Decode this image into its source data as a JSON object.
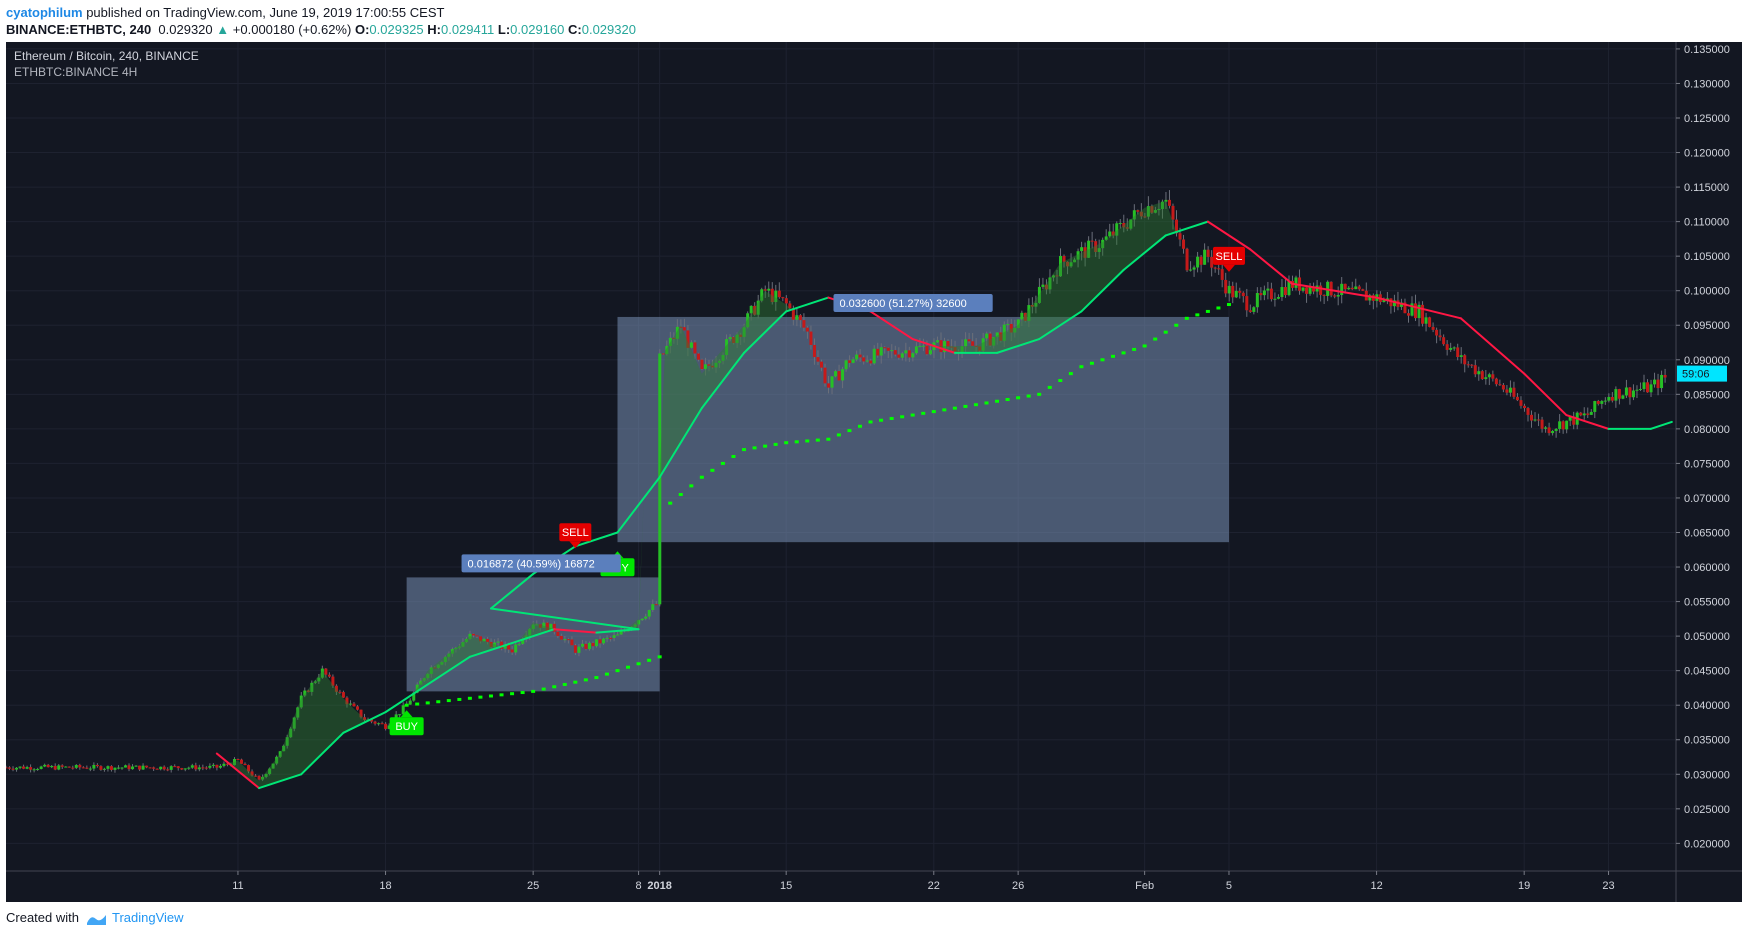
{
  "header": {
    "author": "cyatophilum",
    "published_text": "published on TradingView.com, June 19, 2019 17:00:55 CEST",
    "symbol": "BINANCE:ETHBTC, 240",
    "last_price": "0.029320",
    "change": "+0.000180 (+0.62%)",
    "open_label": "O:",
    "open": "0.029325",
    "high_label": "H:",
    "high": "0.029411",
    "low_label": "L:",
    "low": "0.029160",
    "close_label": "C:",
    "close": "0.029320"
  },
  "chart": {
    "title": "Ethereum / Bitcoin, 240, BINANCE",
    "indicator": "ETHBTC:BINANCE 4H",
    "countdown": "59:06"
  },
  "colors": {
    "background": "#131722",
    "bull_candle": "#26c026",
    "bear_candle": "#c41a1a",
    "ma_up": "#00e676",
    "ma_down": "#ff1744",
    "stop_dots": "#00ff00",
    "range_box": "#788fb4",
    "buy_label": "#00e600",
    "sell_label": "#e50000",
    "countdown_bg": "#00e5ff"
  },
  "chart_data": {
    "type": "candlestick",
    "title": "Ethereum / Bitcoin, 240, BINANCE",
    "x_tick_labels": [
      "11",
      "18",
      "25",
      "2018",
      "8",
      "15",
      "22",
      "26",
      "Feb",
      "5",
      "12",
      "19",
      "23"
    ],
    "y_tick_labels": [
      "0.135000",
      "0.130000",
      "0.125000",
      "0.120000",
      "0.115000",
      "0.110000",
      "0.105000",
      "0.100000",
      "0.095000",
      "0.090000",
      "0.085000",
      "0.080000",
      "0.075000",
      "0.070000",
      "0.065000",
      "0.060000",
      "0.055000",
      "0.050000",
      "0.045000",
      "0.040000",
      "0.035000",
      "0.030000",
      "0.025000",
      "0.020000"
    ],
    "ylim": [
      0.016,
      0.136
    ],
    "price_path": [
      {
        "x": "Dec 10",
        "y": 0.031
      },
      {
        "x": "Dec 11",
        "y": 0.032
      },
      {
        "x": "Dec 12",
        "y": 0.029
      },
      {
        "x": "Dec 13",
        "y": 0.033
      },
      {
        "x": "Dec 14",
        "y": 0.041
      },
      {
        "x": "Dec 15",
        "y": 0.045
      },
      {
        "x": "Dec 16",
        "y": 0.041
      },
      {
        "x": "Dec 17",
        "y": 0.038
      },
      {
        "x": "Dec 18",
        "y": 0.037
      },
      {
        "x": "Dec 19",
        "y": 0.04
      },
      {
        "x": "Dec 20",
        "y": 0.045
      },
      {
        "x": "Dec 22",
        "y": 0.05
      },
      {
        "x": "Dec 24",
        "y": 0.048
      },
      {
        "x": "Dec 25",
        "y": 0.052
      },
      {
        "x": "Dec 26",
        "y": 0.051
      },
      {
        "x": "Dec 27",
        "y": 0.048
      },
      {
        "x": "Dec 29",
        "y": 0.05
      },
      {
        "x": "Dec 31",
        "y": 0.055
      },
      {
        "x": "Jan 1",
        "y": 0.054
      },
      {
        "x": "Jan 2",
        "y": 0.061
      },
      {
        "x": "Jan 3",
        "y": 0.058
      },
      {
        "x": "Jan 4",
        "y": 0.065
      },
      {
        "x": "Jan 5",
        "y": 0.062
      },
      {
        "x": "Jan 6",
        "y": 0.058
      },
      {
        "x": "Jan 7",
        "y": 0.062
      },
      {
        "x": "Jan 8",
        "y": 0.076
      },
      {
        "x": "Jan 9",
        "y": 0.09
      },
      {
        "x": "Jan 10",
        "y": 0.095
      },
      {
        "x": "Jan 11",
        "y": 0.088
      },
      {
        "x": "Jan 13",
        "y": 0.095
      },
      {
        "x": "Jan 14",
        "y": 0.1
      },
      {
        "x": "Jan 15",
        "y": 0.098
      },
      {
        "x": "Jan 16",
        "y": 0.094
      },
      {
        "x": "Jan 17",
        "y": 0.086
      },
      {
        "x": "Jan 18",
        "y": 0.09
      },
      {
        "x": "Jan 20",
        "y": 0.091
      },
      {
        "x": "Jan 22",
        "y": 0.092
      },
      {
        "x": "Jan 24",
        "y": 0.092
      },
      {
        "x": "Jan 26",
        "y": 0.095
      },
      {
        "x": "Jan 28",
        "y": 0.104
      },
      {
        "x": "Jan 30",
        "y": 0.107
      },
      {
        "x": "Feb 1",
        "y": 0.112
      },
      {
        "x": "Feb 2",
        "y": 0.113
      },
      {
        "x": "Feb 3",
        "y": 0.104
      },
      {
        "x": "Feb 4",
        "y": 0.105
      },
      {
        "x": "Feb 5",
        "y": 0.1
      },
      {
        "x": "Feb 6",
        "y": 0.098
      },
      {
        "x": "Feb 8",
        "y": 0.101
      },
      {
        "x": "Feb 10",
        "y": 0.1
      },
      {
        "x": "Feb 12",
        "y": 0.099
      },
      {
        "x": "Feb 14",
        "y": 0.097
      },
      {
        "x": "Feb 16",
        "y": 0.09
      },
      {
        "x": "Feb 18",
        "y": 0.086
      },
      {
        "x": "Feb 20",
        "y": 0.08
      },
      {
        "x": "Feb 22",
        "y": 0.082
      },
      {
        "x": "Feb 23",
        "y": 0.085
      },
      {
        "x": "Feb 25",
        "y": 0.086
      },
      {
        "x": "Feb 26",
        "y": 0.088
      }
    ],
    "moving_average": [
      {
        "x": "Dec 10",
        "y": 0.033
      },
      {
        "x": "Dec 12",
        "y": 0.028
      },
      {
        "x": "Dec 14",
        "y": 0.03
      },
      {
        "x": "Dec 16",
        "y": 0.036
      },
      {
        "x": "Dec 18",
        "y": 0.039
      },
      {
        "x": "Dec 20",
        "y": 0.043
      },
      {
        "x": "Dec 22",
        "y": 0.047
      },
      {
        "x": "Dec 24",
        "y": 0.049
      },
      {
        "x": "Dec 26",
        "y": 0.051
      },
      {
        "x": "Dec 28",
        "y": 0.0505
      },
      {
        "x": "Dec 30",
        "y": 0.051
      },
      {
        "x": "Jan 1",
        "y": 0.054
      },
      {
        "x": "Jan 3",
        "y": 0.059
      },
      {
        "x": "Jan 5",
        "y": 0.063
      },
      {
        "x": "Jan 7",
        "y": 0.065
      },
      {
        "x": "Jan 9",
        "y": 0.073
      },
      {
        "x": "Jan 11",
        "y": 0.083
      },
      {
        "x": "Jan 13",
        "y": 0.091
      },
      {
        "x": "Jan 15",
        "y": 0.097
      },
      {
        "x": "Jan 17",
        "y": 0.099
      },
      {
        "x": "Jan 19",
        "y": 0.097
      },
      {
        "x": "Jan 21",
        "y": 0.093
      },
      {
        "x": "Jan 23",
        "y": 0.091
      },
      {
        "x": "Jan 25",
        "y": 0.091
      },
      {
        "x": "Jan 27",
        "y": 0.093
      },
      {
        "x": "Jan 29",
        "y": 0.097
      },
      {
        "x": "Jan 31",
        "y": 0.103
      },
      {
        "x": "Feb 2",
        "y": 0.108
      },
      {
        "x": "Feb 4",
        "y": 0.11
      },
      {
        "x": "Feb 6",
        "y": 0.106
      },
      {
        "x": "Feb 8",
        "y": 0.101
      },
      {
        "x": "Feb 12",
        "y": 0.099
      },
      {
        "x": "Feb 16",
        "y": 0.096
      },
      {
        "x": "Feb 19",
        "y": 0.088
      },
      {
        "x": "Feb 21",
        "y": 0.082
      },
      {
        "x": "Feb 23",
        "y": 0.08
      },
      {
        "x": "Feb 25",
        "y": 0.08
      },
      {
        "x": "Feb 26",
        "y": 0.081
      }
    ],
    "trailing_stop": [
      {
        "x": "Dec 19",
        "y": 0.04
      },
      {
        "x": "Dec 22",
        "y": 0.041
      },
      {
        "x": "Dec 25",
        "y": 0.042
      },
      {
        "x": "Dec 28",
        "y": 0.044
      },
      {
        "x": "Dec 31",
        "y": 0.047
      },
      {
        "x": "Jan 3",
        "y": 0.055
      },
      {
        "x": "Jan 6",
        "y": 0.0625
      },
      {
        "x": "Jan 9",
        "y": 0.068
      },
      {
        "x": "Jan 11",
        "y": 0.073
      },
      {
        "x": "Jan 13",
        "y": 0.077
      },
      {
        "x": "Jan 15",
        "y": 0.078
      },
      {
        "x": "Jan 17",
        "y": 0.0785
      },
      {
        "x": "Jan 19",
        "y": 0.081
      },
      {
        "x": "Jan 21",
        "y": 0.082
      },
      {
        "x": "Jan 23",
        "y": 0.083
      },
      {
        "x": "Jan 25",
        "y": 0.084
      },
      {
        "x": "Jan 27",
        "y": 0.085
      },
      {
        "x": "Jan 29",
        "y": 0.089
      },
      {
        "x": "Feb 1",
        "y": 0.092
      },
      {
        "x": "Feb 3",
        "y": 0.096
      },
      {
        "x": "Feb 5",
        "y": 0.098
      }
    ],
    "signals": [
      {
        "type": "BUY",
        "x": "Dec 19",
        "y": 0.04
      },
      {
        "type": "SELL",
        "x": "Jan 5",
        "y": 0.062
      },
      {
        "type": "BUY",
        "x": "Jan 7",
        "y": 0.063
      },
      {
        "type": "SELL",
        "x": "Feb 5",
        "y": 0.102
      }
    ],
    "ranges": [
      {
        "x_start": "Dec 19",
        "x_end": "Dec 31",
        "y_start": 0.042,
        "y_end": 0.0585,
        "label": "0.016872 (40.59%) 16872"
      },
      {
        "x_start": "Jan 7",
        "x_end": "Feb 5",
        "y_start": 0.0636,
        "y_end": 0.0962,
        "label": "0.032600 (51.27%) 32600"
      }
    ]
  },
  "footer": {
    "created_with": "Created with",
    "brand": "TradingView"
  }
}
